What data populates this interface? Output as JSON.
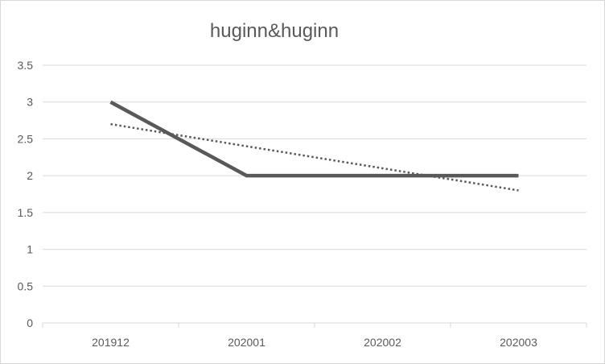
{
  "chart_data": {
    "type": "line",
    "title": "huginn&huginn",
    "categories": [
      "201912",
      "202001",
      "202002",
      "202003"
    ],
    "series": [
      {
        "values": [
          3,
          2,
          2,
          2
        ],
        "color": "#595959",
        "style": "solid"
      }
    ],
    "trendline": {
      "type": "linear",
      "values": [
        2.7,
        2.4,
        2.1,
        1.8
      ],
      "color": "#595959",
      "style": "dotted"
    },
    "ylim": [
      0,
      3.5
    ],
    "yticks": [
      "0",
      "0.5",
      "1",
      "1.5",
      "2",
      "2.5",
      "3",
      "3.5"
    ],
    "grid": true,
    "legend": "none"
  }
}
